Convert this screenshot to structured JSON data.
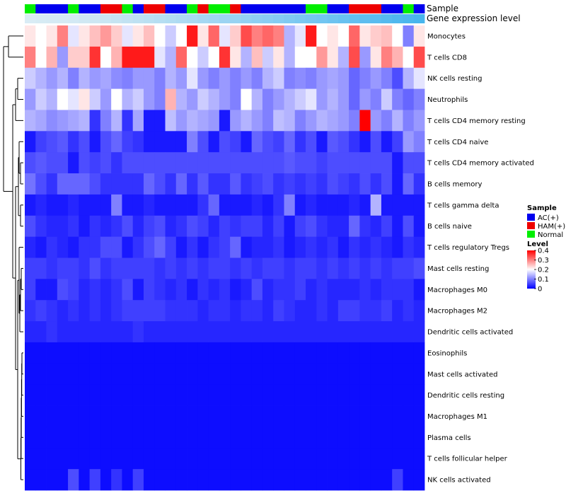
{
  "chart_data": {
    "type": "heatmap",
    "annotations": {
      "sample_label": "Sample",
      "expression_label": "Gene expression level",
      "sample_groups": [
        "N",
        "A",
        "A",
        "A",
        "N",
        "A",
        "A",
        "H",
        "H",
        "N",
        "A",
        "H",
        "H",
        "A",
        "A",
        "N",
        "H",
        "N",
        "N",
        "H",
        "A",
        "A",
        "A",
        "A",
        "A",
        "A",
        "N",
        "N",
        "A",
        "A",
        "H",
        "H",
        "H",
        "A",
        "A",
        "N",
        "A"
      ],
      "expression_colors": [
        "#d9ecf5",
        "#d7ebf4",
        "#d6eaf4",
        "#d5eaf4",
        "#d3e9f4",
        "#d0e8f3",
        "#cde7f3",
        "#cae6f3",
        "#c6e4f2",
        "#c2e2f2",
        "#bee1f2",
        "#bae0f2",
        "#b6def2",
        "#b2ddf2",
        "#aedbf2",
        "#aadaf2",
        "#a5d8f2",
        "#a1d6f2",
        "#9cd4f2",
        "#98d3f2",
        "#93d1f2",
        "#8ecff2",
        "#8acef2",
        "#85ccf2",
        "#80caf1",
        "#7bc8f1",
        "#76c6f1",
        "#72c5f1",
        "#6dc3f0",
        "#68c1f0",
        "#63bff0",
        "#5ebdef",
        "#5abcef",
        "#55baee",
        "#50b8ee",
        "#4cb7ed",
        "#48b5ed"
      ]
    },
    "rows": [
      "Monocytes",
      "T cells CD8",
      "NK cells resting",
      "Neutrophils",
      "T cells CD4 memory resting",
      "T cells CD4 naive",
      "T cells CD4 memory activated",
      "B cells memory",
      "T cells gamma delta",
      "B cells naive",
      "T cells regulatory  Tregs",
      "Mast cells resting",
      "Macrophages M0",
      "Macrophages M2",
      "Dendritic cells activated",
      "Eosinophils",
      "Mast cells activated",
      "Dendritic cells resting",
      "Macrophages M1",
      "Plasma cells",
      "T cells follicular helper",
      "NK cells activated"
    ],
    "values": [
      [
        0.22,
        0.2,
        0.22,
        0.3,
        0.18,
        0.22,
        0.25,
        0.28,
        0.24,
        0.18,
        0.22,
        0.25,
        0.2,
        0.16,
        0.2,
        0.38,
        0.22,
        0.32,
        0.18,
        0.24,
        0.34,
        0.3,
        0.32,
        0.3,
        0.14,
        0.18,
        0.38,
        0.2,
        0.22,
        0.2,
        0.32,
        0.22,
        0.24,
        0.25,
        0.2,
        0.1,
        0.22
      ],
      [
        0.3,
        0.2,
        0.26,
        0.12,
        0.24,
        0.24,
        0.36,
        0.2,
        0.26,
        0.38,
        0.38,
        0.38,
        0.18,
        0.14,
        0.32,
        0.2,
        0.16,
        0.2,
        0.36,
        0.22,
        0.14,
        0.25,
        0.16,
        0.22,
        0.14,
        0.2,
        0.2,
        0.28,
        0.22,
        0.14,
        0.34,
        0.12,
        0.22,
        0.3,
        0.26,
        0.2,
        0.34
      ],
      [
        0.16,
        0.14,
        0.12,
        0.14,
        0.1,
        0.14,
        0.12,
        0.13,
        0.11,
        0.1,
        0.12,
        0.12,
        0.1,
        0.14,
        0.12,
        0.18,
        0.12,
        0.1,
        0.12,
        0.1,
        0.12,
        0.1,
        0.14,
        0.16,
        0.1,
        0.11,
        0.1,
        0.12,
        0.13,
        0.12,
        0.08,
        0.1,
        0.12,
        0.1,
        0.06,
        0.14,
        0.18
      ],
      [
        0.12,
        0.16,
        0.14,
        0.2,
        0.18,
        0.22,
        0.16,
        0.12,
        0.2,
        0.14,
        0.16,
        0.12,
        0.1,
        0.26,
        0.14,
        0.12,
        0.16,
        0.14,
        0.12,
        0.1,
        0.2,
        0.14,
        0.1,
        0.12,
        0.14,
        0.16,
        0.18,
        0.12,
        0.14,
        0.12,
        0.08,
        0.12,
        0.1,
        0.16,
        0.1,
        0.08,
        0.1
      ],
      [
        0.14,
        0.13,
        0.11,
        0.12,
        0.13,
        0.14,
        0.04,
        0.1,
        0.14,
        0.04,
        0.13,
        0.02,
        0.02,
        0.15,
        0.12,
        0.14,
        0.13,
        0.12,
        0.02,
        0.12,
        0.14,
        0.12,
        0.1,
        0.15,
        0.14,
        0.1,
        0.12,
        0.14,
        0.13,
        0.12,
        0.1,
        0.42,
        0.12,
        0.1,
        0.14,
        0.1,
        0.12
      ],
      [
        0.02,
        0.05,
        0.06,
        0.07,
        0.04,
        0.06,
        0.02,
        0.06,
        0.08,
        0.05,
        0.04,
        0.02,
        0.02,
        0.02,
        0.02,
        0.1,
        0.06,
        0.02,
        0.06,
        0.05,
        0.02,
        0.08,
        0.06,
        0.05,
        0.08,
        0.04,
        0.06,
        0.02,
        0.07,
        0.06,
        0.04,
        0.02,
        0.06,
        0.02,
        0.05,
        0.12,
        0.1
      ],
      [
        0.06,
        0.07,
        0.06,
        0.06,
        0.02,
        0.06,
        0.05,
        0.06,
        0.04,
        0.06,
        0.06,
        0.06,
        0.06,
        0.06,
        0.06,
        0.06,
        0.06,
        0.06,
        0.06,
        0.06,
        0.06,
        0.06,
        0.06,
        0.06,
        0.07,
        0.06,
        0.06,
        0.05,
        0.06,
        0.06,
        0.06,
        0.06,
        0.06,
        0.06,
        0.02,
        0.06,
        0.06
      ],
      [
        0.09,
        0.06,
        0.04,
        0.08,
        0.08,
        0.08,
        0.06,
        0.04,
        0.04,
        0.04,
        0.04,
        0.08,
        0.06,
        0.04,
        0.08,
        0.04,
        0.07,
        0.04,
        0.04,
        0.07,
        0.04,
        0.05,
        0.06,
        0.04,
        0.05,
        0.04,
        0.05,
        0.04,
        0.06,
        0.05,
        0.04,
        0.06,
        0.04,
        0.06,
        0.02,
        0.08,
        0.04
      ],
      [
        0.02,
        0.03,
        0.02,
        0.02,
        0.03,
        0.02,
        0.02,
        0.02,
        0.1,
        0.02,
        0.02,
        0.03,
        0.02,
        0.02,
        0.02,
        0.02,
        0.04,
        0.08,
        0.02,
        0.02,
        0.02,
        0.03,
        0.02,
        0.04,
        0.1,
        0.02,
        0.03,
        0.02,
        0.02,
        0.02,
        0.03,
        0.02,
        0.14,
        0.02,
        0.02,
        0.02,
        0.02
      ],
      [
        0.06,
        0.04,
        0.03,
        0.03,
        0.04,
        0.02,
        0.04,
        0.03,
        0.04,
        0.06,
        0.03,
        0.05,
        0.06,
        0.03,
        0.04,
        0.06,
        0.05,
        0.03,
        0.05,
        0.04,
        0.05,
        0.05,
        0.03,
        0.05,
        0.02,
        0.05,
        0.06,
        0.04,
        0.03,
        0.03,
        0.08,
        0.04,
        0.03,
        0.05,
        0.02,
        0.06,
        0.02
      ],
      [
        0.03,
        0.02,
        0.04,
        0.03,
        0.02,
        0.04,
        0.04,
        0.06,
        0.06,
        0.02,
        0.04,
        0.06,
        0.08,
        0.05,
        0.02,
        0.04,
        0.02,
        0.04,
        0.05,
        0.08,
        0.02,
        0.03,
        0.03,
        0.04,
        0.02,
        0.03,
        0.04,
        0.03,
        0.04,
        0.02,
        0.04,
        0.03,
        0.04,
        0.03,
        0.02,
        0.04,
        0.03
      ],
      [
        0.05,
        0.05,
        0.04,
        0.05,
        0.05,
        0.04,
        0.06,
        0.04,
        0.05,
        0.05,
        0.05,
        0.05,
        0.04,
        0.05,
        0.04,
        0.05,
        0.04,
        0.05,
        0.05,
        0.04,
        0.05,
        0.04,
        0.05,
        0.05,
        0.04,
        0.05,
        0.05,
        0.04,
        0.05,
        0.04,
        0.05,
        0.04,
        0.05,
        0.04,
        0.05,
        0.05,
        0.06
      ],
      [
        0.05,
        0.02,
        0.02,
        0.06,
        0.05,
        0.03,
        0.04,
        0.03,
        0.04,
        0.06,
        0.02,
        0.05,
        0.04,
        0.03,
        0.04,
        0.02,
        0.04,
        0.03,
        0.04,
        0.02,
        0.03,
        0.06,
        0.03,
        0.04,
        0.04,
        0.05,
        0.03,
        0.04,
        0.03,
        0.03,
        0.03,
        0.04,
        0.03,
        0.04,
        0.04,
        0.04,
        0.02
      ],
      [
        0.04,
        0.05,
        0.04,
        0.03,
        0.04,
        0.03,
        0.04,
        0.03,
        0.04,
        0.05,
        0.05,
        0.05,
        0.05,
        0.04,
        0.04,
        0.04,
        0.03,
        0.04,
        0.04,
        0.03,
        0.04,
        0.04,
        0.03,
        0.05,
        0.04,
        0.03,
        0.03,
        0.04,
        0.03,
        0.05,
        0.05,
        0.04,
        0.04,
        0.05,
        0.03,
        0.04,
        0.03
      ],
      [
        0.03,
        0.03,
        0.04,
        0.03,
        0.03,
        0.03,
        0.03,
        0.03,
        0.03,
        0.03,
        0.04,
        0.03,
        0.03,
        0.03,
        0.03,
        0.03,
        0.03,
        0.03,
        0.03,
        0.03,
        0.03,
        0.03,
        0.03,
        0.03,
        0.03,
        0.03,
        0.03,
        0.03,
        0.03,
        0.03,
        0.03,
        0.03,
        0.03,
        0.03,
        0.03,
        0.03,
        0.03
      ],
      [
        0.01,
        0.01,
        0.01,
        0.01,
        0.01,
        0.01,
        0.01,
        0.01,
        0.01,
        0.01,
        0.01,
        0.01,
        0.01,
        0.01,
        0.01,
        0.01,
        0.01,
        0.01,
        0.01,
        0.01,
        0.01,
        0.01,
        0.01,
        0.01,
        0.01,
        0.01,
        0.01,
        0.01,
        0.01,
        0.01,
        0.01,
        0.01,
        0.01,
        0.01,
        0.01,
        0.01,
        0.01
      ],
      [
        0.01,
        0.01,
        0.01,
        0.01,
        0.01,
        0.01,
        0.01,
        0.01,
        0.01,
        0.01,
        0.01,
        0.01,
        0.01,
        0.01,
        0.01,
        0.01,
        0.01,
        0.01,
        0.01,
        0.01,
        0.01,
        0.01,
        0.01,
        0.01,
        0.01,
        0.01,
        0.01,
        0.01,
        0.01,
        0.01,
        0.01,
        0.01,
        0.01,
        0.01,
        0.01,
        0.01,
        0.01
      ],
      [
        0.01,
        0.01,
        0.01,
        0.01,
        0.01,
        0.01,
        0.01,
        0.01,
        0.01,
        0.01,
        0.01,
        0.01,
        0.01,
        0.01,
        0.01,
        0.01,
        0.01,
        0.01,
        0.01,
        0.01,
        0.01,
        0.01,
        0.01,
        0.01,
        0.01,
        0.01,
        0.01,
        0.01,
        0.01,
        0.01,
        0.01,
        0.01,
        0.01,
        0.01,
        0.01,
        0.01,
        0.01
      ],
      [
        0.01,
        0.01,
        0.01,
        0.01,
        0.01,
        0.01,
        0.01,
        0.01,
        0.01,
        0.01,
        0.01,
        0.01,
        0.01,
        0.01,
        0.01,
        0.01,
        0.01,
        0.01,
        0.01,
        0.01,
        0.01,
        0.01,
        0.01,
        0.01,
        0.01,
        0.01,
        0.01,
        0.01,
        0.01,
        0.01,
        0.01,
        0.01,
        0.01,
        0.01,
        0.01,
        0.01,
        0.01
      ],
      [
        0.01,
        0.01,
        0.01,
        0.01,
        0.01,
        0.01,
        0.01,
        0.01,
        0.01,
        0.01,
        0.01,
        0.01,
        0.01,
        0.01,
        0.01,
        0.01,
        0.01,
        0.01,
        0.01,
        0.01,
        0.01,
        0.01,
        0.01,
        0.01,
        0.01,
        0.01,
        0.01,
        0.01,
        0.01,
        0.01,
        0.01,
        0.01,
        0.01,
        0.01,
        0.01,
        0.01,
        0.01
      ],
      [
        0.01,
        0.01,
        0.01,
        0.01,
        0.01,
        0.01,
        0.01,
        0.01,
        0.01,
        0.01,
        0.01,
        0.01,
        0.01,
        0.01,
        0.01,
        0.01,
        0.01,
        0.01,
        0.01,
        0.01,
        0.01,
        0.01,
        0.01,
        0.01,
        0.01,
        0.01,
        0.01,
        0.01,
        0.01,
        0.01,
        0.01,
        0.01,
        0.01,
        0.01,
        0.01,
        0.01,
        0.01
      ],
      [
        0.01,
        0.01,
        0.01,
        0.01,
        0.06,
        0.01,
        0.05,
        0.01,
        0.04,
        0.01,
        0.05,
        0.01,
        0.01,
        0.01,
        0.01,
        0.01,
        0.01,
        0.01,
        0.01,
        0.01,
        0.01,
        0.01,
        0.01,
        0.01,
        0.01,
        0.01,
        0.01,
        0.01,
        0.01,
        0.01,
        0.01,
        0.01,
        0.01,
        0.01,
        0.05,
        0.01,
        0.01
      ]
    ],
    "color_scale": {
      "low": "#0000ff",
      "mid": "#ffffff",
      "high": "#ff0000",
      "min": 0,
      "mid_value": 0.2,
      "max": 0.4
    },
    "legend": {
      "sample_title": "Sample",
      "groups": [
        {
          "key": "A",
          "label": "AC(+)",
          "color": "#0000ee"
        },
        {
          "key": "H",
          "label": "HAM(+)",
          "color": "#ee0000"
        },
        {
          "key": "N",
          "label": "Normal",
          "color": "#00ee00"
        }
      ],
      "level_title": "Level",
      "level_ticks": [
        "0.4",
        "0.3",
        "0.2",
        "0.1",
        "0"
      ],
      "level_tick_values": [
        0.4,
        0.3,
        0.2,
        0.1,
        0
      ]
    }
  }
}
